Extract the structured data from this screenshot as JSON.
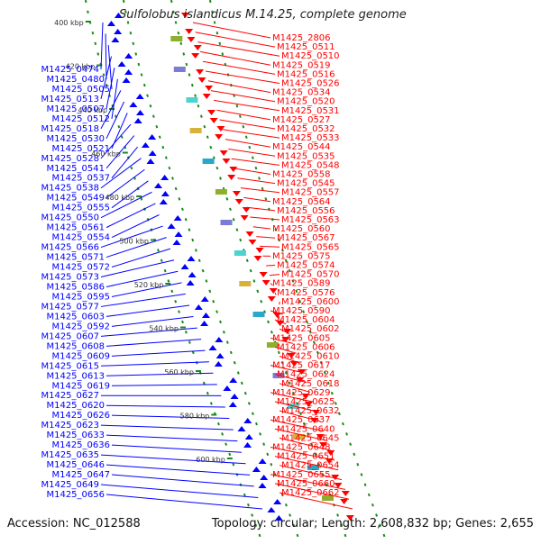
{
  "title": "Sulfolobus islandicus M.14.25, complete genome",
  "accession": "Accession: NC_012588",
  "topology": "Topology: circular; Length: 2,608,832 bp; Genes: 2,655",
  "colors": {
    "forward": "#0000ff",
    "reverse": "#ff0000",
    "backbone": "#999999",
    "ruler": "#1a8a1a"
  },
  "scale_labels": [
    "400 kbp",
    "420 kbp",
    "440 kbp",
    "460 kbp",
    "480 kbp",
    "500 kbp",
    "520 kbp",
    "540 kbp",
    "560 kbp",
    "580 kbp",
    "600 kbp"
  ],
  "left_labels": [
    "M1425_0474",
    "M1425_0480",
    "M1425_0505",
    "M1425_0513",
    "M1425_0507",
    "M1425_0512",
    "M1425_0518",
    "M1425_0530",
    "M1425_0521",
    "M1425_0528",
    "M1425_0541",
    "M1425_0537",
    "M1425_0538",
    "M1425_0549",
    "M1425_0555",
    "M1425_0550",
    "M1425_0561",
    "M1425_0554",
    "M1425_0566",
    "M1425_0571",
    "M1425_0572",
    "M1425_0573",
    "M1425_0586",
    "M1425_0595",
    "M1425_0577",
    "M1425_0603",
    "M1425_0592",
    "M1425_0607",
    "M1425_0608",
    "M1425_0609",
    "M1425_0615",
    "M1425_0613",
    "M1425_0619",
    "M1425_0627",
    "M1425_0620",
    "M1425_0626",
    "M1425_0623",
    "M1425_0633",
    "M1425_0636",
    "M1425_0635",
    "M1425_0646",
    "M1425_0647",
    "M1425_0649",
    "M1425_0656"
  ],
  "right_labels": [
    "M1425_2806",
    "M1425_0511",
    "M1425_0510",
    "M1425_0519",
    "M1425_0516",
    "M1425_0526",
    "M1425_0534",
    "M1425_0520",
    "M1425_0531",
    "M1425_0527",
    "M1425_0532",
    "M1425_0533",
    "M1425_0544",
    "M1425_0535",
    "M1425_0548",
    "M1425_0558",
    "M1425_0545",
    "M1425_0557",
    "M1425_0564",
    "M1425_0556",
    "M1425_0563",
    "M1425_0560",
    "M1425_0567",
    "M1425_0565",
    "M1425_0575",
    "M1425_0574",
    "M1425_0570",
    "M1425_0589",
    "M1425_0576",
    "M1425_0600",
    "M1425_0590",
    "M1425_0604",
    "M1425_0602",
    "M1425_0605",
    "M1425_0606",
    "M1425_0610",
    "M1425_0617",
    "M1425_0624",
    "M1425_0618",
    "M1425_0629",
    "M1425_0625",
    "M1425_0632",
    "M1425_0637",
    "M1425_0640",
    "M1425_0645",
    "M1425_0648",
    "M1425_0651",
    "M1425_0654",
    "M1425_0655",
    "M1425_0660",
    "M1425_0662"
  ]
}
